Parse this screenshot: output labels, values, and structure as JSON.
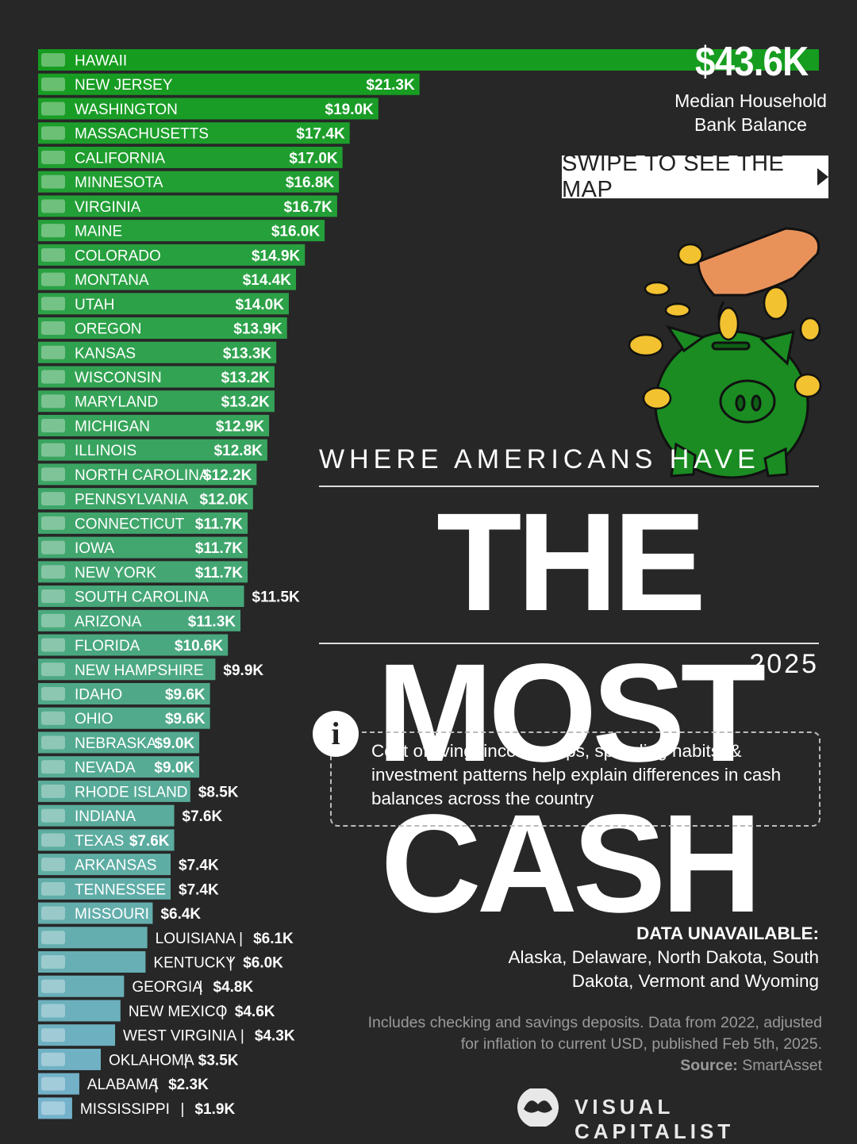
{
  "chart_data": {
    "type": "bar",
    "orientation": "horizontal",
    "title": "WHERE AMERICANS HAVE THE MOST CASH",
    "year": "2025",
    "metric": "Median Household Bank Balance",
    "unit": "USD thousands",
    "categories": [
      "HAWAII",
      "NEW JERSEY",
      "WASHINGTON",
      "MASSACHUSETTS",
      "CALIFORNIA",
      "MINNESOTA",
      "VIRGINIA",
      "MAINE",
      "COLORADO",
      "MONTANA",
      "UTAH",
      "OREGON",
      "KANSAS",
      "WISCONSIN",
      "MARYLAND",
      "MICHIGAN",
      "ILLINOIS",
      "NORTH CAROLINA",
      "PENNSYLVANIA",
      "CONNECTICUT",
      "IOWA",
      "NEW YORK",
      "SOUTH CAROLINA",
      "ARIZONA",
      "FLORIDA",
      "NEW HAMPSHIRE",
      "IDAHO",
      "OHIO",
      "NEBRASKA",
      "NEVADA",
      "RHODE ISLAND",
      "INDIANA",
      "TEXAS",
      "ARKANSAS",
      "TENNESSEE",
      "MISSOURI",
      "LOUISIANA",
      "KENTUCKY",
      "GEORGIA",
      "NEW MEXICO",
      "WEST VIRGINIA",
      "OKLAHOMA",
      "ALABAMA",
      "MISSISSIPPI"
    ],
    "values": [
      43.6,
      21.3,
      19.0,
      17.4,
      17.0,
      16.8,
      16.7,
      16.0,
      14.9,
      14.4,
      14.0,
      13.9,
      13.3,
      13.2,
      13.2,
      12.9,
      12.8,
      12.2,
      12.0,
      11.7,
      11.7,
      11.7,
      11.5,
      11.3,
      10.6,
      9.9,
      9.6,
      9.6,
      9.0,
      9.0,
      8.5,
      7.6,
      7.6,
      7.4,
      7.4,
      6.4,
      6.1,
      6.0,
      4.8,
      4.6,
      4.3,
      3.5,
      2.3,
      1.9
    ],
    "value_labels": [
      "$43.6K",
      "$21.3K",
      "$19.0K",
      "$17.4K",
      "$17.0K",
      "$16.8K",
      "$16.7K",
      "$16.0K",
      "$14.9K",
      "$14.4K",
      "$14.0K",
      "$13.9K",
      "$13.3K",
      "$13.2K",
      "$13.2K",
      "$12.9K",
      "$12.8K",
      "$12.2K",
      "$12.0K",
      "$11.7K",
      "$11.7K",
      "$11.7K",
      "$11.5K",
      "$11.3K",
      "$10.6K",
      "$9.9K",
      "$9.6K",
      "$9.6K",
      "$9.0K",
      "$9.0K",
      "$8.5K",
      "$7.6K",
      "$7.6K",
      "$7.4K",
      "$7.4K",
      "$6.4K",
      "$6.1K",
      "$6.0K",
      "$4.8K",
      "$4.6K",
      "$4.3K",
      "$3.5K",
      "$2.3K",
      "$1.9K"
    ],
    "colors": {
      "start": "#169c1f",
      "end": "#74b2cc"
    }
  },
  "top": {
    "value": "$43.6K",
    "desc_line1": "Median Household",
    "desc_line2": "Bank Balance"
  },
  "swipe_label": "SWIPE TO SEE THE MAP",
  "subtitle": "WHERE AMERICANS HAVE",
  "headline": "THE MOST CASH",
  "year": "2025",
  "info": {
    "icon": "i",
    "text": "Cost of living, income gaps, spending habits, & investment patterns help explain differences in cash balances across the country"
  },
  "unavailable": {
    "title": "DATA UNAVAILABLE:",
    "text": "Alaska, Delaware, North Dakota, South Dakota, Vermont and Wyoming"
  },
  "note": {
    "text": "Includes checking and savings deposits. Data from 2022, adjusted for inflation to current USD, published Feb 5th, 2025.",
    "source_label": "Source:",
    "source": "SmartAsset"
  },
  "brand": "VISUAL CAPITALIST"
}
